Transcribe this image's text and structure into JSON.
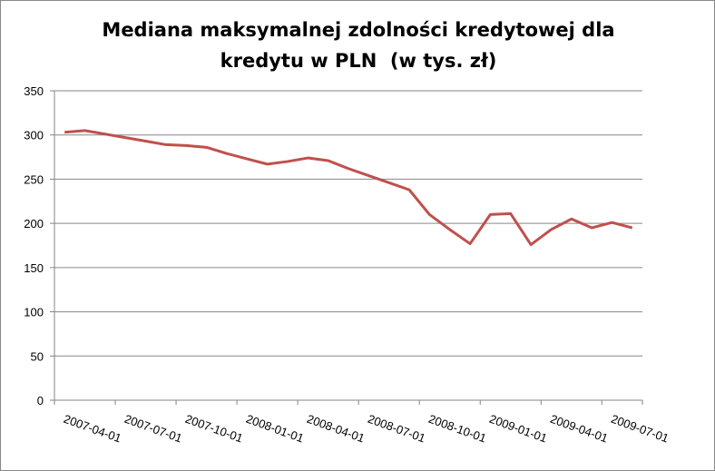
{
  "chart_data": {
    "type": "line",
    "title": [
      "Mediana maksymalnej zdolności kredytowej dla",
      "kredytu w PLN  (w tys. zł)"
    ],
    "categories": [
      "2007-04-01",
      null,
      null,
      "2007-07-01",
      null,
      null,
      "2007-10-01",
      null,
      null,
      "2008-01-01",
      null,
      null,
      "2008-04-01",
      null,
      null,
      "2008-07-01",
      null,
      null,
      "2008-10-01",
      null,
      null,
      "2009-01-01",
      null,
      null,
      "2009-04-01",
      null,
      null,
      "2009-07-01",
      null
    ],
    "series": [
      {
        "color": "#c0504d",
        "values": [
          303,
          305,
          301,
          297,
          293,
          289,
          288,
          286,
          279,
          273,
          267,
          270,
          274,
          271,
          262,
          254,
          246,
          238,
          210,
          193,
          177,
          210,
          211,
          176,
          193,
          205,
          195,
          201,
          195
        ]
      }
    ],
    "ylim": [
      0,
      350
    ],
    "yticks": [
      0,
      50,
      100,
      150,
      200,
      250,
      300,
      350
    ],
    "grid": true
  }
}
